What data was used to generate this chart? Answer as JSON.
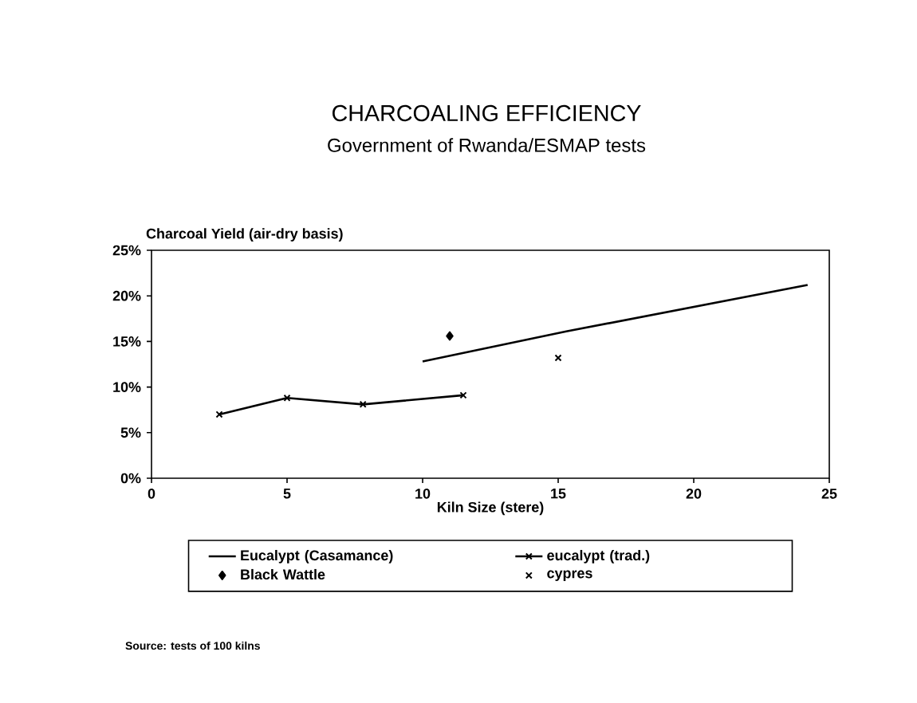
{
  "chart_data": {
    "type": "line",
    "title": "CHARCOALING EFFICIENCY",
    "subtitle": "Government of Rwanda/ESMAP tests",
    "xlabel": "Kiln Size (stere)",
    "ylabel": "Charcoal Yield (air-dry basis)",
    "xlim": [
      0,
      25
    ],
    "xticks": [
      0,
      5,
      10,
      15,
      20,
      25
    ],
    "ylim": [
      0,
      25
    ],
    "yticks": [
      {
        "value": 0,
        "label": "0%"
      },
      {
        "value": 5,
        "label": "5%"
      },
      {
        "value": 10,
        "label": "10%"
      },
      {
        "value": 15,
        "label": "15%"
      },
      {
        "value": 20,
        "label": "20%"
      },
      {
        "value": 25,
        "label": "25%"
      }
    ],
    "grid": false,
    "legend": "bottom",
    "series": [
      {
        "name": "Eucalypt (Casamance)",
        "marker": "none",
        "color": "#000000",
        "x": [
          10,
          15.3,
          24.2
        ],
        "values": [
          12.8,
          16.1,
          21.2
        ]
      },
      {
        "name": "eucalypt (trad.)",
        "marker": "cross",
        "color": "#000000",
        "x": [
          2.5,
          5,
          7.8,
          11.5
        ],
        "values": [
          7.0,
          8.8,
          8.1,
          9.1
        ]
      },
      {
        "name": "Black Wattle",
        "type": "scatter",
        "marker": "diamond",
        "color": "#000000",
        "x": [
          11
        ],
        "values": [
          15.6
        ]
      },
      {
        "name": "cypres",
        "type": "scatter",
        "marker": "cross",
        "color": "#000000",
        "x": [
          15
        ],
        "values": [
          13.2
        ]
      }
    ],
    "annotations": [
      "Source: tests of 100 kilns"
    ]
  }
}
